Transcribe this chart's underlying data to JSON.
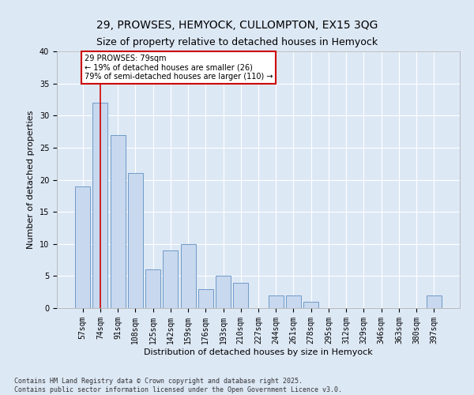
{
  "title1": "29, PROWSES, HEMYOCK, CULLOMPTON, EX15 3QG",
  "title2": "Size of property relative to detached houses in Hemyock",
  "xlabel": "Distribution of detached houses by size in Hemyock",
  "ylabel": "Number of detached properties",
  "categories": [
    "57sqm",
    "74sqm",
    "91sqm",
    "108sqm",
    "125sqm",
    "142sqm",
    "159sqm",
    "176sqm",
    "193sqm",
    "210sqm",
    "227sqm",
    "244sqm",
    "261sqm",
    "278sqm",
    "295sqm",
    "312sqm",
    "329sqm",
    "346sqm",
    "363sqm",
    "380sqm",
    "397sqm"
  ],
  "values": [
    19,
    32,
    27,
    21,
    6,
    9,
    10,
    3,
    5,
    4,
    0,
    2,
    2,
    1,
    0,
    0,
    0,
    0,
    0,
    0,
    2
  ],
  "bar_color": "#c8d8ee",
  "bar_edge_color": "#6090c0",
  "red_line_x": 1,
  "annotation_text": "29 PROWSES: 79sqm\n← 19% of detached houses are smaller (26)\n79% of semi-detached houses are larger (110) →",
  "annotation_box_color": "#ffffff",
  "annotation_box_edge": "#cc0000",
  "red_line_color": "#cc0000",
  "ylim": [
    0,
    40
  ],
  "yticks": [
    0,
    5,
    10,
    15,
    20,
    25,
    30,
    35,
    40
  ],
  "footer_text": "Contains HM Land Registry data © Crown copyright and database right 2025.\nContains public sector information licensed under the Open Government Licence v3.0.",
  "background_color": "#dde8f5",
  "plot_background": "#dde8f5",
  "grid_color": "#ffffff",
  "title_fontsize": 10,
  "axis_fontsize": 8,
  "tick_fontsize": 7,
  "annotation_fontsize": 7,
  "footer_fontsize": 6
}
